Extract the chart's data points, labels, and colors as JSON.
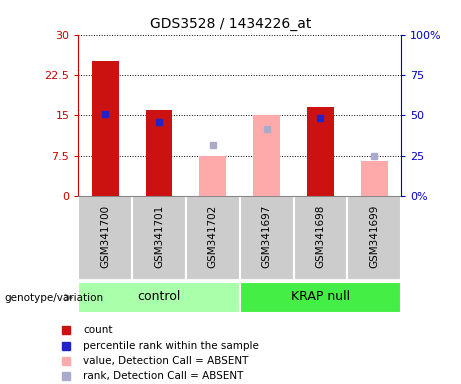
{
  "title": "GDS3528 / 1434226_at",
  "samples": [
    "GSM341700",
    "GSM341701",
    "GSM341702",
    "GSM341697",
    "GSM341698",
    "GSM341699"
  ],
  "red_bars": [
    25.0,
    16.0,
    null,
    null,
    16.5,
    null
  ],
  "blue_dots": [
    15.2,
    13.8,
    null,
    null,
    14.5,
    null
  ],
  "pink_bars": [
    null,
    null,
    7.5,
    15.0,
    null,
    6.5
  ],
  "lavender_dots": [
    null,
    null,
    9.5,
    12.5,
    null,
    7.5
  ],
  "ylim": [
    0,
    30
  ],
  "yticks_left": [
    0,
    7.5,
    15,
    22.5,
    30
  ],
  "yticks_right": [
    0,
    25,
    50,
    75,
    100
  ],
  "ytick_labels_left": [
    "0",
    "7.5",
    "15",
    "22.5",
    "30"
  ],
  "ytick_labels_right": [
    "0%",
    "25",
    "50",
    "75",
    "100%"
  ],
  "left_axis_color": "#cc0000",
  "right_axis_color": "#0000cc",
  "bar_width": 0.5,
  "red_bar_color": "#cc1111",
  "blue_dot_color": "#2222cc",
  "pink_bar_color": "#ffaaaa",
  "lavender_dot_color": "#aaaacc",
  "group_control_color": "#aaffaa",
  "group_krap_color": "#44ee44",
  "label_bg_color": "#cccccc",
  "genotype_label": "genotype/variation",
  "legend_items": [
    {
      "color": "#cc1111",
      "label": "count"
    },
    {
      "color": "#2222cc",
      "label": "percentile rank within the sample"
    },
    {
      "color": "#ffaaaa",
      "label": "value, Detection Call = ABSENT"
    },
    {
      "color": "#aaaacc",
      "label": "rank, Detection Call = ABSENT"
    }
  ]
}
